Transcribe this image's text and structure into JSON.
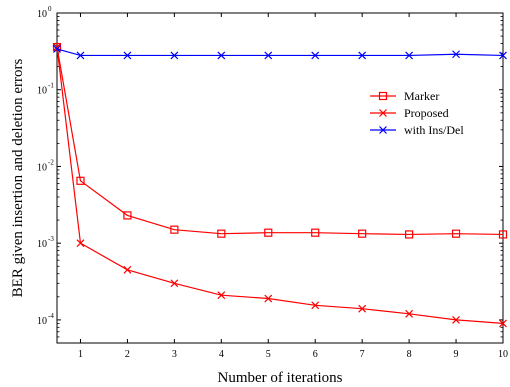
{
  "chart_data": {
    "type": "line",
    "xlabel": "Number of iterations",
    "ylabel": "BER given insertion and deletion errors",
    "y_scale": "log",
    "xlim": [
      0.5,
      10
    ],
    "ylim": [
      5e-05,
      1
    ],
    "x_ticks": [
      "1",
      "2",
      "3",
      "4",
      "5",
      "6",
      "7",
      "8",
      "9",
      "10"
    ],
    "y_ticks": [
      {
        "value": 1,
        "mantissa": "10",
        "exponent": "0"
      },
      {
        "value": 0.1,
        "mantissa": "10",
        "exponent": "-1"
      },
      {
        "value": 0.01,
        "mantissa": "10",
        "exponent": "-2"
      },
      {
        "value": 0.001,
        "mantissa": "10",
        "exponent": "-3"
      },
      {
        "value": 0.0001,
        "mantissa": "10",
        "exponent": "-4"
      }
    ],
    "grid": false,
    "legend_position": "top-right",
    "series": [
      {
        "name": "Marker",
        "color": "#ff0000",
        "marker": "square",
        "x": [
          0.5,
          1,
          2,
          3,
          4,
          5,
          6,
          7,
          8,
          9,
          10
        ],
        "y": [
          0.36,
          0.0065,
          0.0023,
          0.0015,
          0.00133,
          0.00137,
          0.00137,
          0.00133,
          0.0013,
          0.00133,
          0.0013
        ]
      },
      {
        "name": "Proposed",
        "color": "#ff0000",
        "marker": "x",
        "x": [
          0.5,
          1,
          2,
          3,
          4,
          5,
          6,
          7,
          8,
          9,
          10
        ],
        "y": [
          0.36,
          0.001,
          0.00045,
          0.0003,
          0.00021,
          0.00019,
          0.000155,
          0.00014,
          0.00012,
          0.0001,
          9e-05
        ]
      },
      {
        "name": "with Ins/Del",
        "color": "#0000ff",
        "marker": "x",
        "x": [
          0.5,
          1,
          2,
          3,
          4,
          5,
          6,
          7,
          8,
          9,
          10
        ],
        "y": [
          0.34,
          0.28,
          0.28,
          0.28,
          0.28,
          0.28,
          0.28,
          0.28,
          0.28,
          0.29,
          0.28
        ]
      }
    ]
  }
}
